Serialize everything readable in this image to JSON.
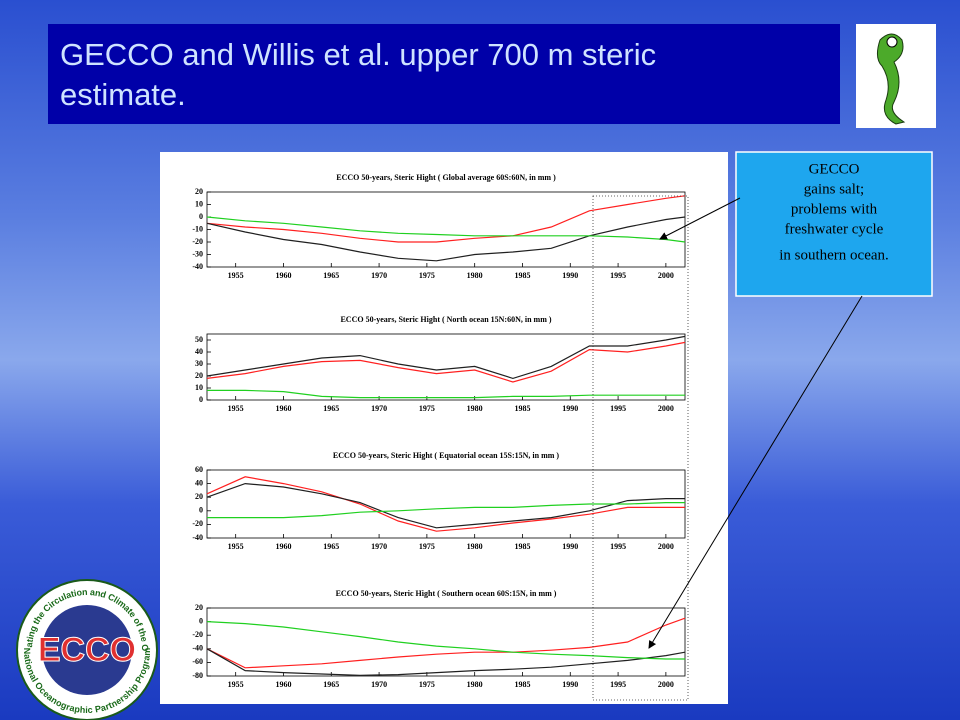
{
  "title": [
    "GECCO and Willis et al. upper 700 m steric",
    "estimate."
  ],
  "callout": {
    "lines": [
      "GECCO",
      "gains salt;",
      "problems with",
      "freshwater cycle",
      "in southern ocean."
    ]
  },
  "logo": {
    "text": "ECCO",
    "ring_top": "Estimating the Circulation and Climate of the Ocean",
    "ring_bottom": "National Oceanographic Partnership Program"
  },
  "chart_data": [
    {
      "type": "line",
      "title": "ECCO 50-years, Steric Hight ( Global average 60S:60N, in mm )",
      "x": [
        1952,
        1956,
        1960,
        1964,
        1968,
        1972,
        1976,
        1980,
        1984,
        1988,
        1992,
        1996,
        2000,
        2002
      ],
      "xlim": [
        1952,
        2002
      ],
      "xticks": [
        1955,
        1960,
        1965,
        1970,
        1975,
        1980,
        1985,
        1990,
        1995,
        2000
      ],
      "ylim": [
        -40,
        20
      ],
      "yticks": [
        -40,
        -30,
        -20,
        -10,
        0,
        10,
        20
      ],
      "series": [
        {
          "color": "#ff2020",
          "values": [
            -5,
            -8,
            -10,
            -13,
            -17,
            -20,
            -20,
            -17,
            -15,
            -8,
            5,
            10,
            15,
            17
          ]
        },
        {
          "color": "#202020",
          "values": [
            -5,
            -12,
            -18,
            -22,
            -28,
            -33,
            -35,
            -30,
            -28,
            -25,
            -15,
            -8,
            -2,
            0
          ]
        },
        {
          "color": "#20d020",
          "values": [
            0,
            -3,
            -5,
            -8,
            -11,
            -13,
            -14,
            -15,
            -15,
            -15,
            -15,
            -16,
            -18,
            -20
          ]
        }
      ]
    },
    {
      "type": "line",
      "title": "ECCO 50-years, Steric Hight ( North ocean 15N:60N, in mm )",
      "x": [
        1952,
        1956,
        1960,
        1964,
        1968,
        1972,
        1976,
        1980,
        1984,
        1988,
        1992,
        1996,
        2000,
        2002
      ],
      "xlim": [
        1952,
        2002
      ],
      "xticks": [
        1955,
        1960,
        1965,
        1970,
        1975,
        1980,
        1985,
        1990,
        1995,
        2000
      ],
      "ylim": [
        0,
        55
      ],
      "yticks": [
        0,
        10,
        20,
        30,
        40,
        50
      ],
      "series": [
        {
          "color": "#ff2020",
          "values": [
            18,
            22,
            28,
            32,
            33,
            27,
            22,
            25,
            15,
            24,
            42,
            40,
            45,
            48
          ]
        },
        {
          "color": "#202020",
          "values": [
            20,
            25,
            30,
            35,
            37,
            30,
            25,
            28,
            18,
            28,
            45,
            45,
            50,
            53
          ]
        },
        {
          "color": "#20d020",
          "values": [
            8,
            8,
            7,
            3,
            2,
            2,
            2,
            2,
            3,
            3,
            4,
            4,
            4,
            4
          ]
        }
      ]
    },
    {
      "type": "line",
      "title": "ECCO 50-years, Steric Hight ( Equatorial ocean 15S:15N, in mm )",
      "x": [
        1952,
        1956,
        1960,
        1964,
        1968,
        1972,
        1976,
        1980,
        1984,
        1988,
        1992,
        1996,
        2000,
        2002
      ],
      "xlim": [
        1952,
        2002
      ],
      "xticks": [
        1955,
        1960,
        1965,
        1970,
        1975,
        1980,
        1985,
        1990,
        1995,
        2000
      ],
      "ylim": [
        -40,
        60
      ],
      "yticks": [
        -40,
        -20,
        0,
        20,
        40,
        60
      ],
      "series": [
        {
          "color": "#ff2020",
          "values": [
            25,
            50,
            40,
            28,
            10,
            -15,
            -30,
            -25,
            -18,
            -12,
            -5,
            5,
            5,
            5
          ]
        },
        {
          "color": "#202020",
          "values": [
            20,
            40,
            35,
            25,
            12,
            -10,
            -25,
            -20,
            -15,
            -10,
            0,
            15,
            18,
            18
          ]
        },
        {
          "color": "#20d020",
          "values": [
            -10,
            -10,
            -10,
            -7,
            -2,
            0,
            3,
            5,
            5,
            8,
            10,
            10,
            12,
            12
          ]
        }
      ]
    },
    {
      "type": "line",
      "title": "ECCO 50-years, Steric Hight ( Southern ocean 60S:15N, in mm )",
      "x": [
        1952,
        1956,
        1960,
        1964,
        1968,
        1972,
        1976,
        1980,
        1984,
        1988,
        1992,
        1996,
        2000,
        2002
      ],
      "xlim": [
        1952,
        2002
      ],
      "xticks": [
        1955,
        1960,
        1965,
        1970,
        1975,
        1980,
        1985,
        1990,
        1995,
        2000
      ],
      "ylim": [
        -80,
        20
      ],
      "yticks": [
        -80,
        -60,
        -40,
        -20,
        0,
        20
      ],
      "series": [
        {
          "color": "#ff2020",
          "values": [
            -40,
            -68,
            -65,
            -62,
            -57,
            -52,
            -48,
            -45,
            -45,
            -42,
            -38,
            -30,
            -5,
            5
          ]
        },
        {
          "color": "#202020",
          "values": [
            -40,
            -72,
            -75,
            -77,
            -79,
            -78,
            -75,
            -72,
            -70,
            -67,
            -62,
            -57,
            -50,
            -45
          ]
        },
        {
          "color": "#20d020",
          "values": [
            0,
            -3,
            -8,
            -15,
            -22,
            -30,
            -36,
            -40,
            -45,
            -48,
            -50,
            -53,
            -55,
            -55
          ]
        }
      ]
    }
  ]
}
